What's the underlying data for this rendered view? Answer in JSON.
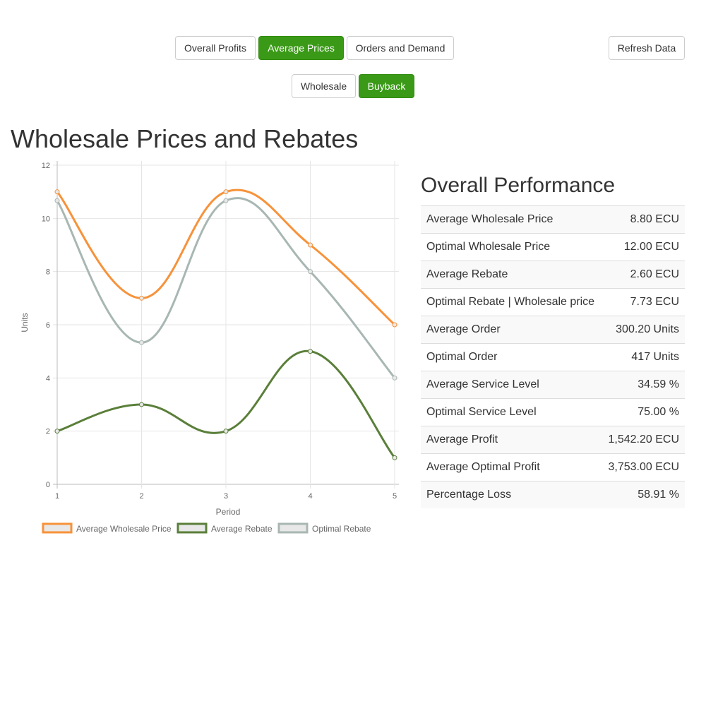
{
  "nav": {
    "tabs": [
      "Overall Profits",
      "Average Prices",
      "Orders and Demand"
    ],
    "refresh_label": "Refresh Data",
    "subtabs": [
      "Wholesale",
      "Buyback"
    ]
  },
  "colors": {
    "accent": "#3a9a17",
    "series_wholesale": "#f7923a",
    "series_rebate": "#5a7f3a",
    "series_optimal": "#a8b7b3"
  },
  "chart_title": "Wholesale Prices and Rebates",
  "chart_data": {
    "type": "line",
    "title": "Wholesale Prices and Rebates",
    "xlabel": "Period",
    "ylabel": "Units",
    "x": [
      1,
      2,
      3,
      4,
      5
    ],
    "ylim": [
      0,
      12
    ],
    "yticks": [
      0,
      2,
      4,
      6,
      8,
      10,
      12
    ],
    "grid": true,
    "legend": "bottom",
    "series": [
      {
        "name": "Average Wholesale Price",
        "values": [
          11,
          7,
          11,
          9,
          6
        ],
        "color": "#f7923a"
      },
      {
        "name": "Average Rebate",
        "values": [
          2,
          3,
          2,
          5,
          1
        ],
        "color": "#5a7f3a"
      },
      {
        "name": "Optimal Rebate",
        "values": [
          10.67,
          5.33,
          10.67,
          8,
          4
        ],
        "color": "#a8b7b3"
      }
    ]
  },
  "performance": {
    "title": "Overall Performance",
    "rows": [
      {
        "label": "Average Wholesale Price",
        "value": "8.80 ECU"
      },
      {
        "label": "Optimal Wholesale Price",
        "value": "12.00 ECU"
      },
      {
        "label": "Average Rebate",
        "value": "2.60 ECU"
      },
      {
        "label": "Optimal Rebate | Wholesale price",
        "value": "7.73 ECU"
      },
      {
        "label": "Average Order",
        "value": "300.20 Units"
      },
      {
        "label": "Optimal Order",
        "value": "417 Units"
      },
      {
        "label": "Average Service Level",
        "value": "34.59 %"
      },
      {
        "label": "Optimal Service Level",
        "value": "75.00 %"
      },
      {
        "label": "Average Profit",
        "value": "1,542.20 ECU"
      },
      {
        "label": "Average Optimal Profit",
        "value": "3,753.00 ECU"
      },
      {
        "label": "Percentage Loss",
        "value": "58.91 %"
      }
    ]
  }
}
